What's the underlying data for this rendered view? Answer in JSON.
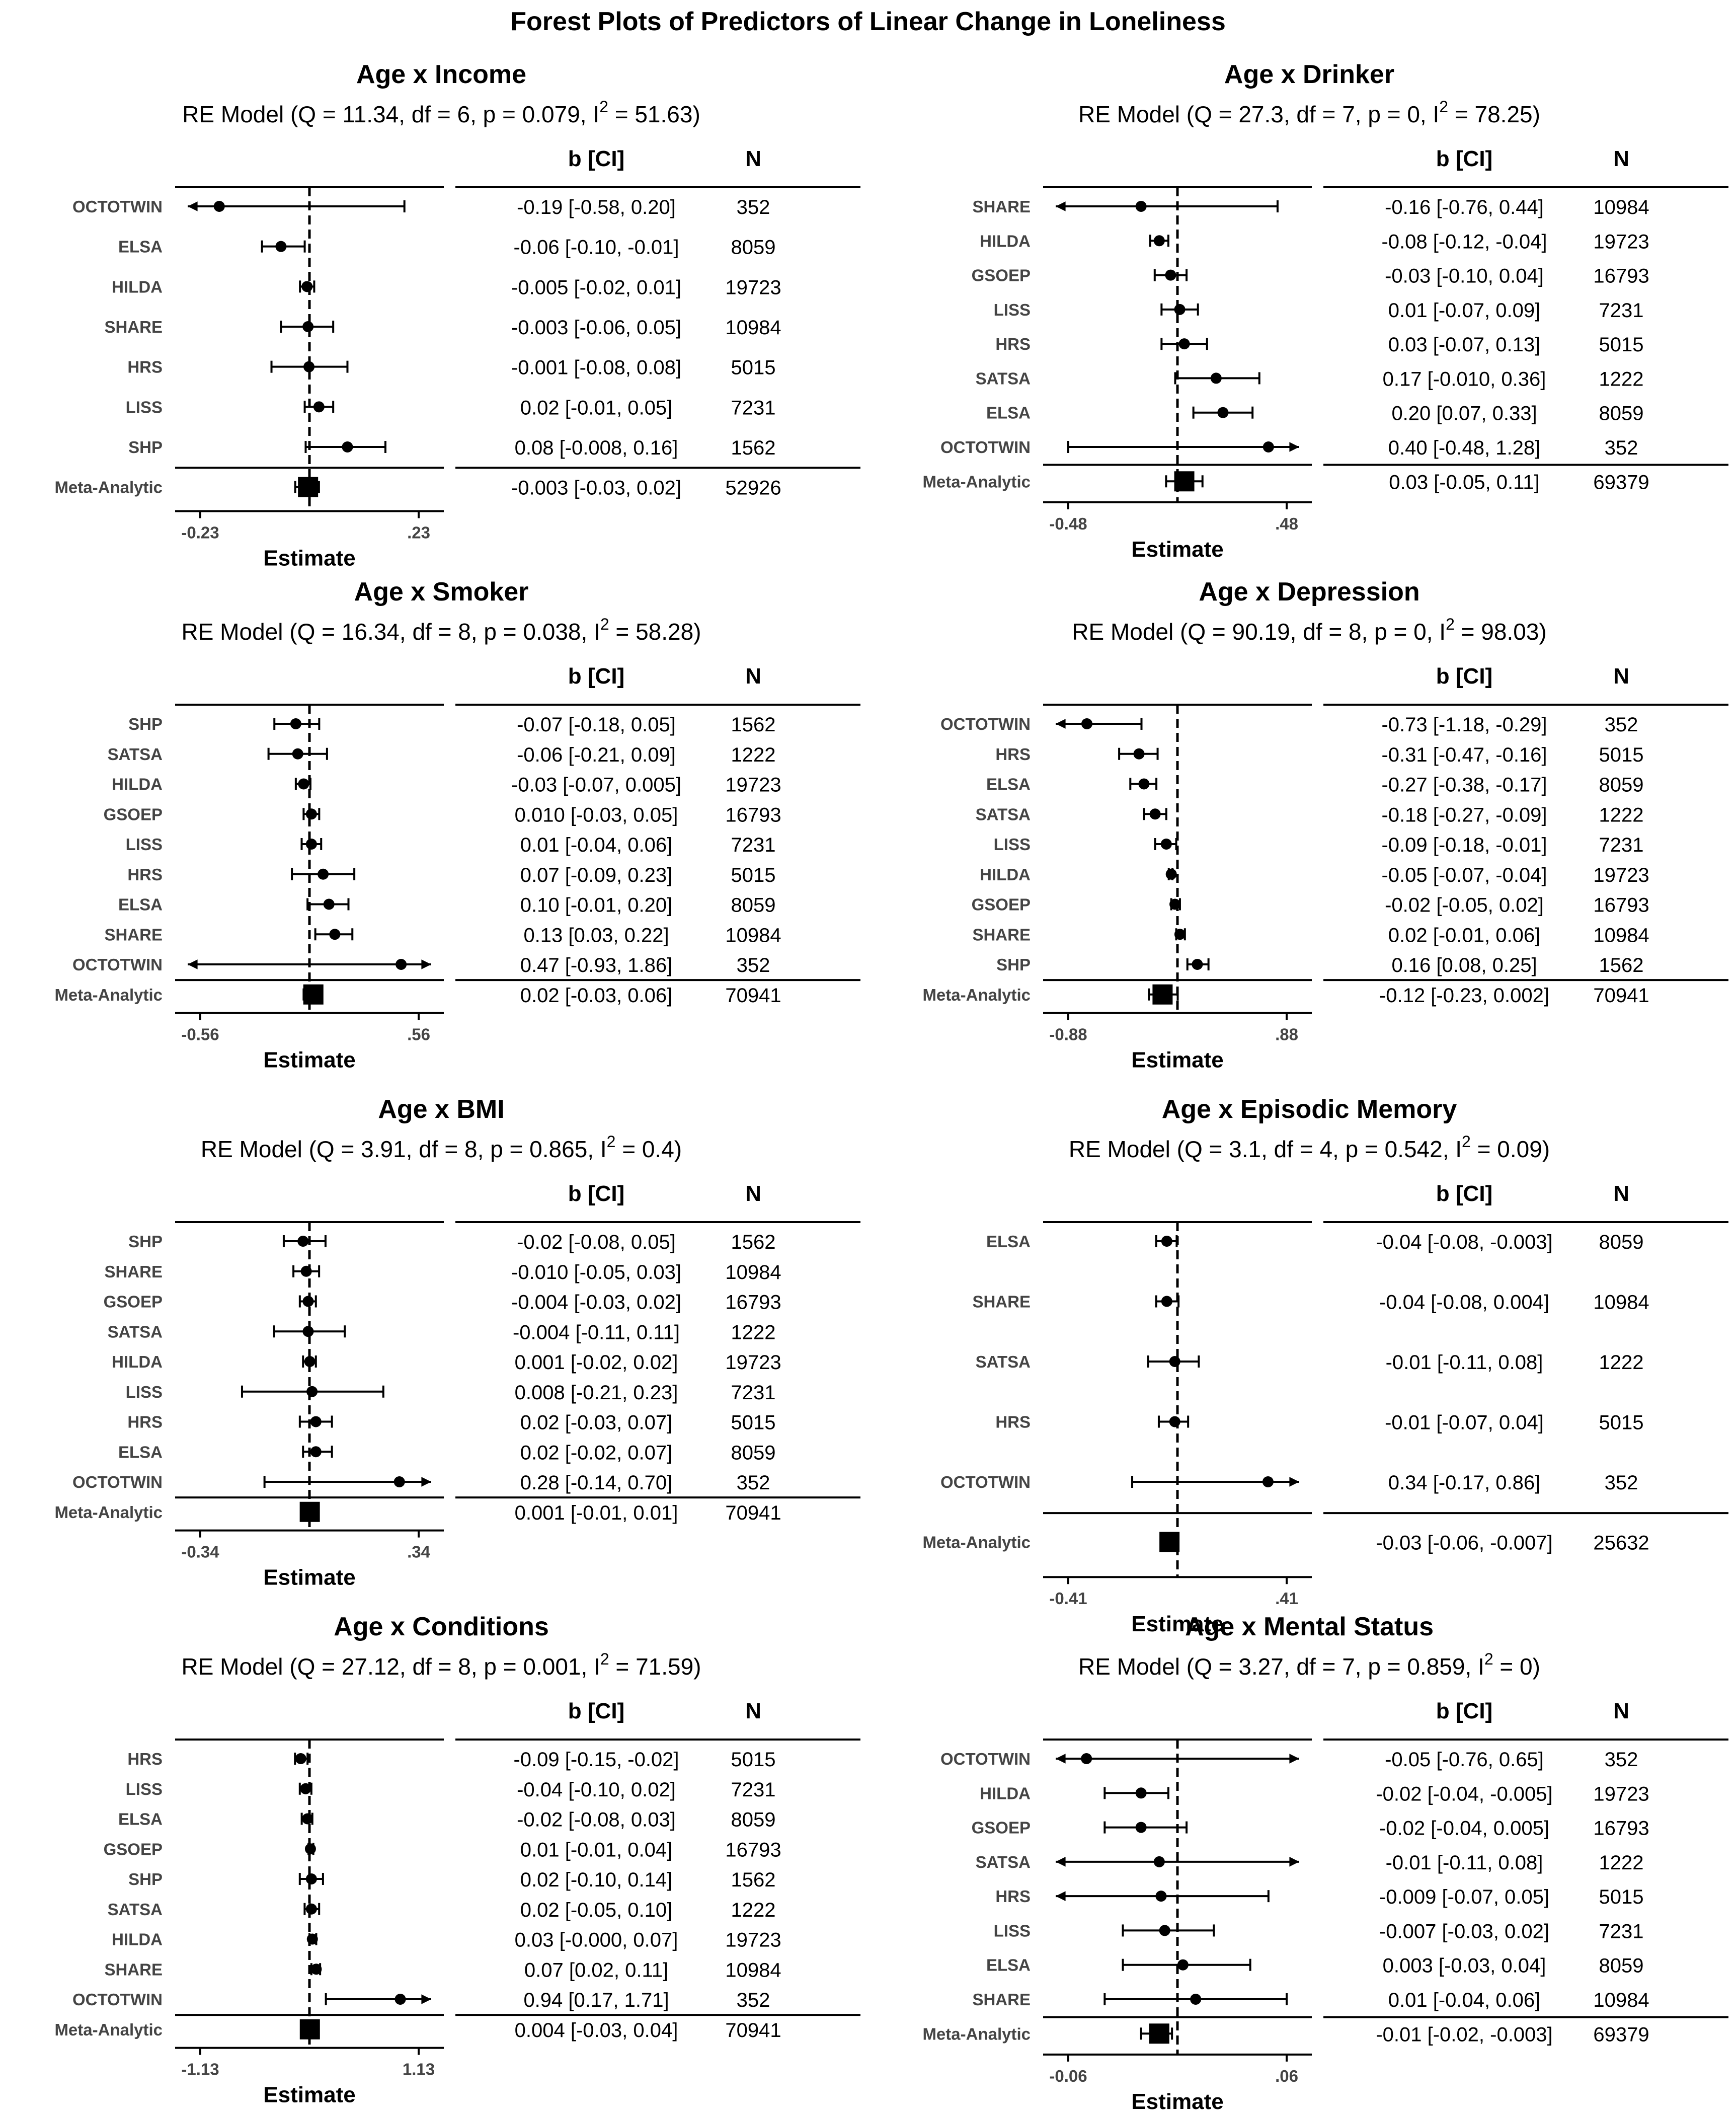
{
  "figure_title": "Forest Plots of Predictors of Linear Change in Loneliness",
  "table_headers": {
    "b": "b [CI]",
    "n": "N"
  },
  "x_axis_label": "Estimate",
  "chart_data": [
    {
      "type": "forest",
      "title": "Age x Income",
      "model_prefix": "RE Model (Q = 11.34, df = 6, p = 0.079, I",
      "model_suffix": " = 51.63)",
      "model_sup": "2",
      "xlim": [
        -0.23,
        0.23
      ],
      "ticks": [
        -0.23,
        0.23
      ],
      "tick_labels": [
        "-0.23",
        ".23"
      ],
      "ref_line": 0,
      "studies": [
        {
          "name": "OCTOTWIN",
          "est": -0.19,
          "lo": -0.58,
          "hi": 0.2,
          "ci": "-0.19 [-0.58, 0.20]",
          "n": "352"
        },
        {
          "name": "ELSA",
          "est": -0.06,
          "lo": -0.1,
          "hi": -0.01,
          "ci": "-0.06 [-0.10, -0.01]",
          "n": "8059"
        },
        {
          "name": "HILDA",
          "est": -0.005,
          "lo": -0.02,
          "hi": 0.01,
          "ci": "-0.005 [-0.02, 0.01]",
          "n": "19723"
        },
        {
          "name": "SHARE",
          "est": -0.003,
          "lo": -0.06,
          "hi": 0.05,
          "ci": "-0.003 [-0.06, 0.05]",
          "n": "10984"
        },
        {
          "name": "HRS",
          "est": -0.001,
          "lo": -0.08,
          "hi": 0.08,
          "ci": "-0.001 [-0.08, 0.08]",
          "n": "5015"
        },
        {
          "name": "LISS",
          "est": 0.02,
          "lo": -0.01,
          "hi": 0.05,
          "ci": "0.02 [-0.01, 0.05]",
          "n": "7231"
        },
        {
          "name": "SHP",
          "est": 0.08,
          "lo": -0.008,
          "hi": 0.16,
          "ci": "0.08 [-0.008, 0.16]",
          "n": "1562"
        }
      ],
      "meta": {
        "name": "Meta-Analytic",
        "est": -0.003,
        "lo": -0.03,
        "hi": 0.02,
        "ci": "-0.003 [-0.03, 0.02]",
        "n": "52926"
      }
    },
    {
      "type": "forest",
      "title": "Age x Drinker",
      "model_prefix": "RE Model (Q = 27.3, df = 7, p = 0, I",
      "model_suffix": " = 78.25)",
      "model_sup": "2",
      "xlim": [
        -0.48,
        0.48
      ],
      "ticks": [
        -0.48,
        0.48
      ],
      "tick_labels": [
        "-0.48",
        ".48"
      ],
      "ref_line": 0,
      "studies": [
        {
          "name": "SHARE",
          "est": -0.16,
          "lo": -0.76,
          "hi": 0.44,
          "ci": "-0.16 [-0.76, 0.44]",
          "n": "10984"
        },
        {
          "name": "HILDA",
          "est": -0.08,
          "lo": -0.12,
          "hi": -0.04,
          "ci": "-0.08 [-0.12, -0.04]",
          "n": "19723"
        },
        {
          "name": "GSOEP",
          "est": -0.03,
          "lo": -0.1,
          "hi": 0.04,
          "ci": "-0.03 [-0.10, 0.04]",
          "n": "16793"
        },
        {
          "name": "LISS",
          "est": 0.01,
          "lo": -0.07,
          "hi": 0.09,
          "ci": "0.01 [-0.07, 0.09]",
          "n": "7231"
        },
        {
          "name": "HRS",
          "est": 0.03,
          "lo": -0.07,
          "hi": 0.13,
          "ci": "0.03 [-0.07, 0.13]",
          "n": "5015"
        },
        {
          "name": "SATSA",
          "est": 0.17,
          "lo": -0.01,
          "hi": 0.36,
          "ci": "0.17 [-0.010, 0.36]",
          "n": "1222"
        },
        {
          "name": "ELSA",
          "est": 0.2,
          "lo": 0.07,
          "hi": 0.33,
          "ci": "0.20 [0.07, 0.33]",
          "n": "8059"
        },
        {
          "name": "OCTOTWIN",
          "est": 0.4,
          "lo": -0.48,
          "hi": 1.28,
          "ci": "0.40 [-0.48, 1.28]",
          "n": "352"
        }
      ],
      "meta": {
        "name": "Meta-Analytic",
        "est": 0.03,
        "lo": -0.05,
        "hi": 0.11,
        "ci": "0.03 [-0.05, 0.11]",
        "n": "69379"
      }
    },
    {
      "type": "forest",
      "title": "Age x Smoker",
      "model_prefix": "RE Model (Q = 16.34, df = 8, p = 0.038, I",
      "model_suffix": " = 58.28)",
      "model_sup": "2",
      "xlim": [
        -0.56,
        0.56
      ],
      "ticks": [
        -0.56,
        0.56
      ],
      "tick_labels": [
        "-0.56",
        ".56"
      ],
      "ref_line": 0,
      "studies": [
        {
          "name": "SHP",
          "est": -0.07,
          "lo": -0.18,
          "hi": 0.05,
          "ci": "-0.07 [-0.18, 0.05]",
          "n": "1562"
        },
        {
          "name": "SATSA",
          "est": -0.06,
          "lo": -0.21,
          "hi": 0.09,
          "ci": "-0.06 [-0.21, 0.09]",
          "n": "1222"
        },
        {
          "name": "HILDA",
          "est": -0.03,
          "lo": -0.07,
          "hi": 0.005,
          "ci": "-0.03 [-0.07, 0.005]",
          "n": "19723"
        },
        {
          "name": "GSOEP",
          "est": 0.01,
          "lo": -0.03,
          "hi": 0.05,
          "ci": "0.010 [-0.03, 0.05]",
          "n": "16793"
        },
        {
          "name": "LISS",
          "est": 0.01,
          "lo": -0.04,
          "hi": 0.06,
          "ci": "0.01 [-0.04, 0.06]",
          "n": "7231"
        },
        {
          "name": "HRS",
          "est": 0.07,
          "lo": -0.09,
          "hi": 0.23,
          "ci": "0.07 [-0.09, 0.23]",
          "n": "5015"
        },
        {
          "name": "ELSA",
          "est": 0.1,
          "lo": -0.01,
          "hi": 0.2,
          "ci": "0.10 [-0.01, 0.20]",
          "n": "8059"
        },
        {
          "name": "SHARE",
          "est": 0.13,
          "lo": 0.03,
          "hi": 0.22,
          "ci": "0.13 [0.03, 0.22]",
          "n": "10984"
        },
        {
          "name": "OCTOTWIN",
          "est": 0.47,
          "lo": -0.93,
          "hi": 1.86,
          "ci": "0.47 [-0.93, 1.86]",
          "n": "352"
        }
      ],
      "meta": {
        "name": "Meta-Analytic",
        "est": 0.02,
        "lo": -0.03,
        "hi": 0.06,
        "ci": "0.02 [-0.03, 0.06]",
        "n": "70941"
      }
    },
    {
      "type": "forest",
      "title": "Age x Depression",
      "model_prefix": "RE Model (Q = 90.19, df = 8, p = 0, I",
      "model_suffix": " = 98.03)",
      "model_sup": "2",
      "xlim": [
        -0.88,
        0.88
      ],
      "ticks": [
        -0.88,
        0.88
      ],
      "tick_labels": [
        "-0.88",
        ".88"
      ],
      "ref_line": 0,
      "studies": [
        {
          "name": "OCTOTWIN",
          "est": -0.73,
          "lo": -1.18,
          "hi": -0.29,
          "ci": "-0.73 [-1.18, -0.29]",
          "n": "352"
        },
        {
          "name": "HRS",
          "est": -0.31,
          "lo": -0.47,
          "hi": -0.16,
          "ci": "-0.31 [-0.47, -0.16]",
          "n": "5015"
        },
        {
          "name": "ELSA",
          "est": -0.27,
          "lo": -0.38,
          "hi": -0.17,
          "ci": "-0.27 [-0.38, -0.17]",
          "n": "8059"
        },
        {
          "name": "SATSA",
          "est": -0.18,
          "lo": -0.27,
          "hi": -0.09,
          "ci": "-0.18 [-0.27, -0.09]",
          "n": "1222"
        },
        {
          "name": "LISS",
          "est": -0.09,
          "lo": -0.18,
          "hi": -0.01,
          "ci": "-0.09 [-0.18, -0.01]",
          "n": "7231"
        },
        {
          "name": "HILDA",
          "est": -0.05,
          "lo": -0.07,
          "hi": -0.04,
          "ci": "-0.05 [-0.07, -0.04]",
          "n": "19723"
        },
        {
          "name": "GSOEP",
          "est": -0.02,
          "lo": -0.05,
          "hi": 0.02,
          "ci": "-0.02 [-0.05, 0.02]",
          "n": "16793"
        },
        {
          "name": "SHARE",
          "est": 0.02,
          "lo": -0.01,
          "hi": 0.06,
          "ci": "0.02 [-0.01, 0.06]",
          "n": "10984"
        },
        {
          "name": "SHP",
          "est": 0.16,
          "lo": 0.08,
          "hi": 0.25,
          "ci": "0.16 [0.08, 0.25]",
          "n": "1562"
        }
      ],
      "meta": {
        "name": "Meta-Analytic",
        "est": -0.12,
        "lo": -0.23,
        "hi": 0.002,
        "ci": "-0.12 [-0.23, 0.002]",
        "n": "70941"
      }
    },
    {
      "type": "forest",
      "title": "Age x BMI",
      "model_prefix": "RE Model (Q = 3.91, df = 8, p = 0.865, I",
      "model_suffix": " = 0.4)",
      "model_sup": "2",
      "xlim": [
        -0.34,
        0.34
      ],
      "ticks": [
        -0.34,
        0.34
      ],
      "tick_labels": [
        "-0.34",
        ".34"
      ],
      "ref_line": 0,
      "studies": [
        {
          "name": "SHP",
          "est": -0.02,
          "lo": -0.08,
          "hi": 0.05,
          "ci": "-0.02 [-0.08, 0.05]",
          "n": "1562"
        },
        {
          "name": "SHARE",
          "est": -0.01,
          "lo": -0.05,
          "hi": 0.03,
          "ci": "-0.010 [-0.05, 0.03]",
          "n": "10984"
        },
        {
          "name": "GSOEP",
          "est": -0.004,
          "lo": -0.03,
          "hi": 0.02,
          "ci": "-0.004 [-0.03, 0.02]",
          "n": "16793"
        },
        {
          "name": "SATSA",
          "est": -0.004,
          "lo": -0.11,
          "hi": 0.11,
          "ci": "-0.004 [-0.11, 0.11]",
          "n": "1222"
        },
        {
          "name": "HILDA",
          "est": 0.001,
          "lo": -0.02,
          "hi": 0.02,
          "ci": "0.001 [-0.02, 0.02]",
          "n": "19723"
        },
        {
          "name": "LISS",
          "est": 0.008,
          "lo": -0.21,
          "hi": 0.23,
          "ci": "0.008 [-0.21, 0.23]",
          "n": "7231"
        },
        {
          "name": "HRS",
          "est": 0.02,
          "lo": -0.03,
          "hi": 0.07,
          "ci": "0.02 [-0.03, 0.07]",
          "n": "5015"
        },
        {
          "name": "ELSA",
          "est": 0.02,
          "lo": -0.02,
          "hi": 0.07,
          "ci": "0.02 [-0.02, 0.07]",
          "n": "8059"
        },
        {
          "name": "OCTOTWIN",
          "est": 0.28,
          "lo": -0.14,
          "hi": 0.7,
          "ci": "0.28 [-0.14, 0.70]",
          "n": "352"
        }
      ],
      "meta": {
        "name": "Meta-Analytic",
        "est": 0.001,
        "lo": -0.01,
        "hi": 0.01,
        "ci": "0.001 [-0.01, 0.01]",
        "n": "70941"
      }
    },
    {
      "type": "forest",
      "title": "Age x Episodic Memory",
      "model_prefix": "RE Model (Q = 3.1, df = 4, p = 0.542, I",
      "model_suffix": " = 0.09)",
      "model_sup": "2",
      "xlim": [
        -0.41,
        0.41
      ],
      "ticks": [
        -0.41,
        0.41
      ],
      "tick_labels": [
        "-0.41",
        ".41"
      ],
      "ref_line": 0,
      "studies": [
        {
          "name": "ELSA",
          "est": -0.04,
          "lo": -0.08,
          "hi": -0.003,
          "ci": "-0.04 [-0.08, -0.003]",
          "n": "8059"
        },
        {
          "name": "SHARE",
          "est": -0.04,
          "lo": -0.08,
          "hi": 0.004,
          "ci": "-0.04 [-0.08, 0.004]",
          "n": "10984"
        },
        {
          "name": "SATSA",
          "est": -0.01,
          "lo": -0.11,
          "hi": 0.08,
          "ci": "-0.01 [-0.11, 0.08]",
          "n": "1222"
        },
        {
          "name": "HRS",
          "est": -0.01,
          "lo": -0.07,
          "hi": 0.04,
          "ci": "-0.01 [-0.07, 0.04]",
          "n": "5015"
        },
        {
          "name": "OCTOTWIN",
          "est": 0.34,
          "lo": -0.17,
          "hi": 0.86,
          "ci": "0.34 [-0.17, 0.86]",
          "n": "352"
        }
      ],
      "meta": {
        "name": "Meta-Analytic",
        "est": -0.03,
        "lo": -0.06,
        "hi": -0.007,
        "ci": "-0.03 [-0.06, -0.007]",
        "n": "25632"
      }
    },
    {
      "type": "forest",
      "title": "Age x Conditions",
      "model_prefix": "RE Model (Q = 27.12, df = 8, p = 0.001, I",
      "model_suffix": " = 71.59)",
      "model_sup": "2",
      "xlim": [
        -1.13,
        1.13
      ],
      "ticks": [
        -1.13,
        1.13
      ],
      "tick_labels": [
        "-1.13",
        "1.13"
      ],
      "ref_line": 0,
      "studies": [
        {
          "name": "HRS",
          "est": -0.09,
          "lo": -0.15,
          "hi": -0.02,
          "ci": "-0.09 [-0.15, -0.02]",
          "n": "5015"
        },
        {
          "name": "LISS",
          "est": -0.04,
          "lo": -0.1,
          "hi": 0.02,
          "ci": "-0.04 [-0.10, 0.02]",
          "n": "7231"
        },
        {
          "name": "ELSA",
          "est": -0.02,
          "lo": -0.08,
          "hi": 0.03,
          "ci": "-0.02 [-0.08, 0.03]",
          "n": "8059"
        },
        {
          "name": "GSOEP",
          "est": 0.01,
          "lo": -0.01,
          "hi": 0.04,
          "ci": "0.01 [-0.01, 0.04]",
          "n": "16793"
        },
        {
          "name": "SHP",
          "est": 0.02,
          "lo": -0.1,
          "hi": 0.14,
          "ci": "0.02 [-0.10, 0.14]",
          "n": "1562"
        },
        {
          "name": "SATSA",
          "est": 0.02,
          "lo": -0.05,
          "hi": 0.1,
          "ci": "0.02 [-0.05, 0.10]",
          "n": "1222"
        },
        {
          "name": "HILDA",
          "est": 0.03,
          "lo": -0.0,
          "hi": 0.07,
          "ci": "0.03 [-0.000, 0.07]",
          "n": "19723"
        },
        {
          "name": "SHARE",
          "est": 0.07,
          "lo": 0.02,
          "hi": 0.11,
          "ci": "0.07 [0.02, 0.11]",
          "n": "10984"
        },
        {
          "name": "OCTOTWIN",
          "est": 0.94,
          "lo": 0.17,
          "hi": 1.71,
          "ci": "0.94 [0.17, 1.71]",
          "n": "352"
        }
      ],
      "meta": {
        "name": "Meta-Analytic",
        "est": 0.004,
        "lo": -0.03,
        "hi": 0.04,
        "ci": "0.004 [-0.03, 0.04]",
        "n": "70941"
      }
    },
    {
      "type": "forest",
      "title": "Age x Mental Status",
      "model_prefix": "RE Model (Q = 3.27, df = 7, p = 0.859, I",
      "model_suffix": " = 0)",
      "model_sup": "2",
      "xlim": [
        -0.06,
        0.06
      ],
      "ticks": [
        -0.06,
        0.06
      ],
      "tick_labels": [
        "-0.06",
        ".06"
      ],
      "ref_line": 0,
      "studies": [
        {
          "name": "OCTOTWIN",
          "est": -0.05,
          "lo": -0.76,
          "hi": 0.65,
          "ci": "-0.05 [-0.76, 0.65]",
          "n": "352"
        },
        {
          "name": "HILDA",
          "est": -0.02,
          "lo": -0.04,
          "hi": -0.005,
          "ci": "-0.02 [-0.04, -0.005]",
          "n": "19723"
        },
        {
          "name": "GSOEP",
          "est": -0.02,
          "lo": -0.04,
          "hi": 0.005,
          "ci": "-0.02 [-0.04, 0.005]",
          "n": "16793"
        },
        {
          "name": "SATSA",
          "est": -0.01,
          "lo": -0.11,
          "hi": 0.08,
          "ci": "-0.01 [-0.11, 0.08]",
          "n": "1222"
        },
        {
          "name": "HRS",
          "est": -0.009,
          "lo": -0.07,
          "hi": 0.05,
          "ci": "-0.009 [-0.07, 0.05]",
          "n": "5015"
        },
        {
          "name": "LISS",
          "est": -0.007,
          "lo": -0.03,
          "hi": 0.02,
          "ci": "-0.007 [-0.03, 0.02]",
          "n": "7231"
        },
        {
          "name": "ELSA",
          "est": 0.003,
          "lo": -0.03,
          "hi": 0.04,
          "ci": "0.003 [-0.03, 0.04]",
          "n": "8059"
        },
        {
          "name": "SHARE",
          "est": 0.01,
          "lo": -0.04,
          "hi": 0.06,
          "ci": "0.01 [-0.04, 0.06]",
          "n": "10984"
        }
      ],
      "meta": {
        "name": "Meta-Analytic",
        "est": -0.01,
        "lo": -0.02,
        "hi": -0.003,
        "ci": "-0.01 [-0.02, -0.003]",
        "n": "69379"
      }
    }
  ]
}
